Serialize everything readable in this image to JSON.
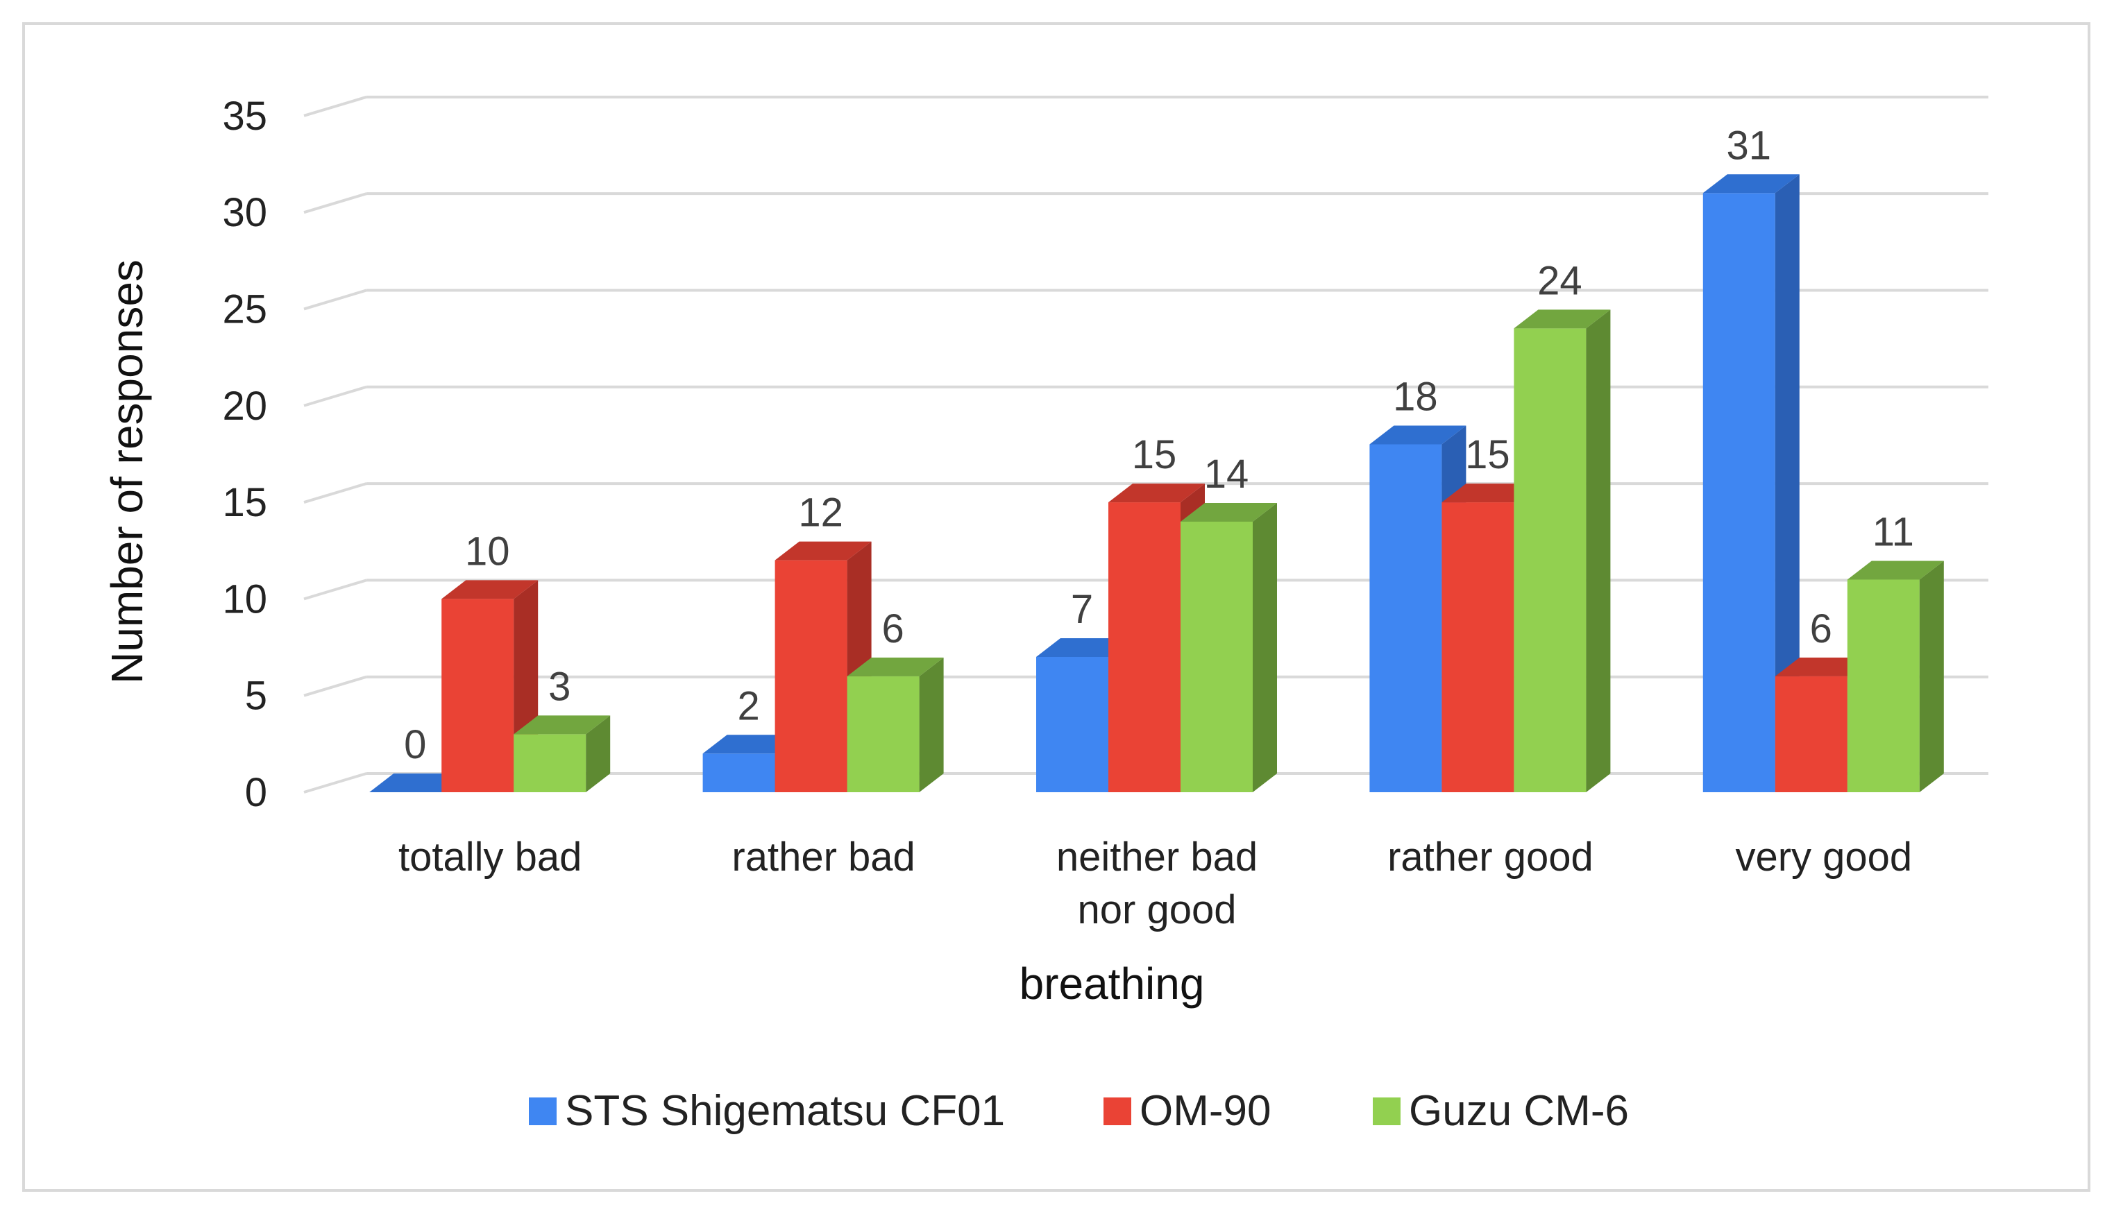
{
  "chart_data": {
    "type": "bar",
    "style": "3d-clustered-column",
    "title": "",
    "xlabel": "breathing",
    "ylabel": "Number of responses",
    "ylim": [
      0,
      35
    ],
    "yticks": [
      0,
      5,
      10,
      15,
      20,
      25,
      30,
      35
    ],
    "grid": true,
    "legend_position": "bottom",
    "categories": [
      [
        "totally bad"
      ],
      [
        "rather bad"
      ],
      [
        "neither bad",
        "nor good"
      ],
      [
        "rather good"
      ],
      [
        "very good"
      ]
    ],
    "series": [
      {
        "name": "STS Shigematsu CF01",
        "color": "#3f86f2",
        "side_color": "#2a5fb4",
        "top_color": "#2f6fd0",
        "values": [
          0,
          2,
          7,
          18,
          31
        ]
      },
      {
        "name": "OM-90",
        "color": "#ea4335",
        "side_color": "#a92e25",
        "top_color": "#c2362b",
        "values": [
          10,
          12,
          15,
          15,
          6
        ]
      },
      {
        "name": "Guzu CM-6",
        "color": "#92d050",
        "side_color": "#5e8a32",
        "top_color": "#72a63f",
        "values": [
          3,
          6,
          14,
          24,
          11
        ]
      }
    ]
  }
}
